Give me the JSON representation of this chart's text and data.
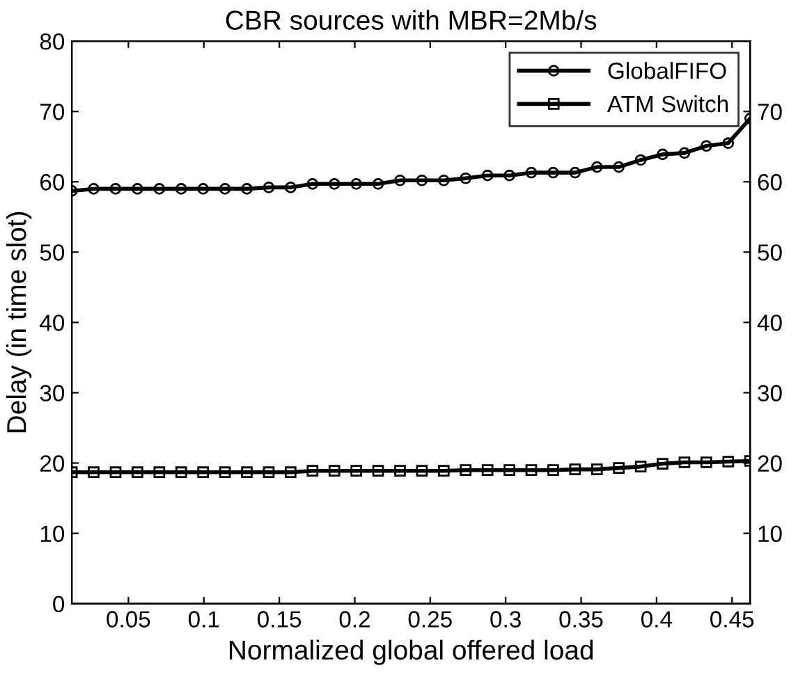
{
  "chart_data": {
    "type": "line",
    "title": "CBR sources with MBR=2Mb/s",
    "xlabel": "Normalized global offered load",
    "ylabel": "Delay (in time slot)",
    "x": [
      0.0125,
      0.027,
      0.0415,
      0.056,
      0.0705,
      0.085,
      0.0995,
      0.114,
      0.1285,
      0.143,
      0.1575,
      0.172,
      0.1865,
      0.201,
      0.2155,
      0.23,
      0.2445,
      0.259,
      0.2735,
      0.288,
      0.3025,
      0.317,
      0.3315,
      0.346,
      0.3605,
      0.375,
      0.3895,
      0.404,
      0.4185,
      0.433,
      0.4475,
      0.462
    ],
    "series": [
      {
        "name": "GlobalFIFO",
        "color": "#000000",
        "marker": "circle",
        "values": [
          58.7,
          59.0,
          59.0,
          59.0,
          59.0,
          59.0,
          59.0,
          59.0,
          59.0,
          59.2,
          59.2,
          59.7,
          59.7,
          59.7,
          59.7,
          60.2,
          60.2,
          60.2,
          60.5,
          60.9,
          60.9,
          61.3,
          61.3,
          61.3,
          62.1,
          62.1,
          63.1,
          63.9,
          64.1,
          65.1,
          65.5,
          69.0
        ]
      },
      {
        "name": "ATM Switch",
        "color": "#000000",
        "marker": "square",
        "values": [
          18.7,
          18.7,
          18.7,
          18.7,
          18.7,
          18.7,
          18.7,
          18.7,
          18.7,
          18.7,
          18.7,
          18.9,
          18.9,
          18.9,
          18.9,
          18.9,
          18.9,
          18.9,
          19.0,
          19.0,
          19.0,
          19.0,
          19.0,
          19.1,
          19.1,
          19.3,
          19.5,
          19.9,
          20.1,
          20.1,
          20.2,
          20.3
        ]
      }
    ],
    "xlim": [
      0.0125,
      0.462
    ],
    "xticks": [
      0.05,
      0.1,
      0.15,
      0.2,
      0.25,
      0.3,
      0.35,
      0.4,
      0.45
    ],
    "ylim": [
      0,
      80
    ],
    "yticks": [
      0,
      10,
      20,
      30,
      40,
      50,
      60,
      70,
      80
    ],
    "y2lim": [
      0,
      80
    ],
    "y2ticks": [
      {
        "value": 0,
        "label": null
      },
      10,
      20,
      30,
      40,
      50,
      60,
      70,
      {
        "value": 80,
        "label": null
      }
    ],
    "legend": "top right",
    "grid": false,
    "line_style": "solid"
  }
}
